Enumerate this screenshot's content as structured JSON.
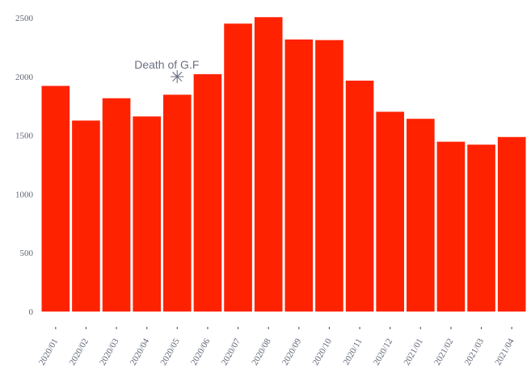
{
  "chart_data": {
    "type": "bar",
    "categories": [
      "2020/01",
      "2020/02",
      "2020/03",
      "2020/04",
      "2020/05",
      "2020/06",
      "2020/07",
      "2020/08",
      "2020/09",
      "2020/10",
      "2020/11",
      "2020/12",
      "2021/01",
      "2021/02",
      "2021/03",
      "2021/04"
    ],
    "values": [
      1920,
      1625,
      1815,
      1660,
      1845,
      2020,
      2450,
      2505,
      2315,
      2310,
      1965,
      1700,
      1640,
      1445,
      1420,
      1485
    ],
    "title": "",
    "xlabel": "",
    "ylabel": "",
    "ylim": [
      0,
      2500
    ],
    "yticks": [
      0,
      500,
      1000,
      1500,
      2000,
      2500
    ],
    "bar_color": "#ff2200",
    "grid": false,
    "legend": "none",
    "annotation": {
      "text": "Death of G.F",
      "marker": "✳",
      "category": "2020/05",
      "value": 2000,
      "color": "#6b6f80"
    }
  }
}
